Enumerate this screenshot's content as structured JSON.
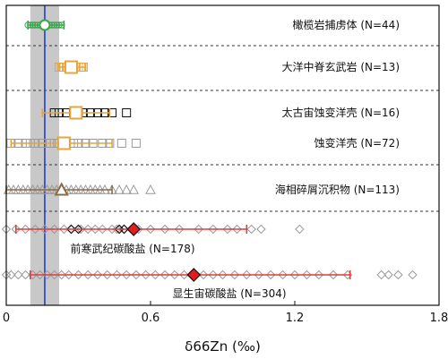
{
  "chart_data": {
    "type": "scatter",
    "title": "",
    "xlabel": "δ66Zn (‰)",
    "ylabel": "",
    "xlim": [
      0,
      1.8
    ],
    "xticks": [
      "0",
      "0.6",
      "1.2",
      "1.8"
    ],
    "grid": false,
    "reference": {
      "line_x": 0.16,
      "band": [
        0.1,
        0.22
      ],
      "line_color": "#1f3fd6",
      "band_color": "#c8c8c8"
    },
    "groups": [
      {
        "name": "橄榄岩捕虏体",
        "n": "(N=44)",
        "label": "橄榄岩捕虏体 (N=44)",
        "marker": "circle",
        "color": "#3aa64a",
        "points": [
          0.09,
          0.1,
          0.11,
          0.12,
          0.13,
          0.14,
          0.15,
          0.16,
          0.17,
          0.18,
          0.19,
          0.2,
          0.21,
          0.22,
          0.23
        ],
        "mean": 0.16,
        "range": [
          0.09,
          0.24
        ]
      },
      {
        "name": "大洋中脊玄武岩",
        "n": "(N=13)",
        "label": "大洋中脊玄武岩 (N=13)",
        "marker": "square",
        "color": "#e8a43a",
        "points": [
          0.22,
          0.23,
          0.24,
          0.25,
          0.26,
          0.27,
          0.28,
          0.29,
          0.3,
          0.31,
          0.32
        ],
        "mean": 0.27,
        "range": [
          0.22,
          0.33
        ]
      },
      {
        "name": "太古宙蚀变洋壳",
        "n": "(N=16)",
        "label": "太古宙蚀变洋壳 (N=16)",
        "marker": "square",
        "color": "#111111",
        "points": [
          0.2,
          0.22,
          0.25,
          0.28,
          0.3,
          0.32,
          0.35,
          0.38,
          0.41,
          0.44,
          0.5
        ],
        "mean": 0.29,
        "range": [
          0.15,
          0.43
        ],
        "mean_color": "#e8a43a"
      },
      {
        "name": "蚀变洋壳",
        "n": "(N=72)",
        "label": "蚀变洋壳 (N=72)",
        "marker": "square",
        "color": "#9a9a9a",
        "points": [
          0.02,
          0.05,
          0.08,
          0.1,
          0.12,
          0.15,
          0.18,
          0.2,
          0.22,
          0.25,
          0.28,
          0.3,
          0.33,
          0.36,
          0.4,
          0.43,
          0.48,
          0.54
        ],
        "mean": 0.24,
        "range": [
          0.02,
          0.44
        ],
        "mean_color": "#e8a43a"
      },
      {
        "name": "海相碎屑沉积物",
        "n": "(N=113)",
        "label": "海相碎屑沉积物 (N=113)",
        "marker": "triangle",
        "color": "#9a9a9a",
        "points": [
          0.01,
          0.03,
          0.05,
          0.07,
          0.09,
          0.11,
          0.13,
          0.15,
          0.17,
          0.19,
          0.21,
          0.23,
          0.25,
          0.27,
          0.29,
          0.31,
          0.33,
          0.35,
          0.37,
          0.39,
          0.41,
          0.44,
          0.47,
          0.5,
          0.53,
          0.6
        ],
        "mean": 0.23,
        "range": [
          0.0,
          0.44
        ],
        "mean_color": "#8b6b47"
      },
      {
        "name": "前寒武纪碳酸盐",
        "n": "(N=178)",
        "label": "前寒武纪碳酸盐 (N=178)",
        "marker": "diamond",
        "color": "#9a9a9a",
        "points": [
          0.0,
          0.04,
          0.08,
          0.12,
          0.16,
          0.2,
          0.24,
          0.27,
          0.31,
          0.34,
          0.37,
          0.4,
          0.44,
          0.46,
          0.49,
          0.55,
          0.6,
          0.66,
          0.72,
          0.8,
          0.86,
          0.92,
          0.96,
          1.02,
          1.06,
          1.22
        ],
        "dark_points": [
          0.27,
          0.3,
          0.47,
          0.49
        ],
        "mean": 0.53,
        "range": [
          0.04,
          1.0
        ],
        "mean_color": "#e11d1d",
        "bar_color": "#e23c3c"
      },
      {
        "name": "显生宙碳酸盐",
        "n": "(N=304)",
        "label": "显生宙碳酸盐 (N=304)",
        "marker": "diamond",
        "color": "#9a9a9a",
        "points": [
          0.0,
          0.02,
          0.05,
          0.08,
          0.11,
          0.14,
          0.17,
          0.2,
          0.23,
          0.26,
          0.3,
          0.34,
          0.38,
          0.42,
          0.46,
          0.5,
          0.54,
          0.58,
          0.62,
          0.66,
          0.7,
          0.74,
          0.78,
          0.82,
          0.86,
          0.9,
          0.95,
          1.0,
          1.05,
          1.1,
          1.15,
          1.2,
          1.25,
          1.3,
          1.36,
          1.42,
          1.56,
          1.59,
          1.63,
          1.69
        ],
        "mean": 0.78,
        "range": [
          0.1,
          1.43
        ],
        "mean_color": "#e11d1d",
        "bar_color": "#e23c3c"
      }
    ]
  }
}
